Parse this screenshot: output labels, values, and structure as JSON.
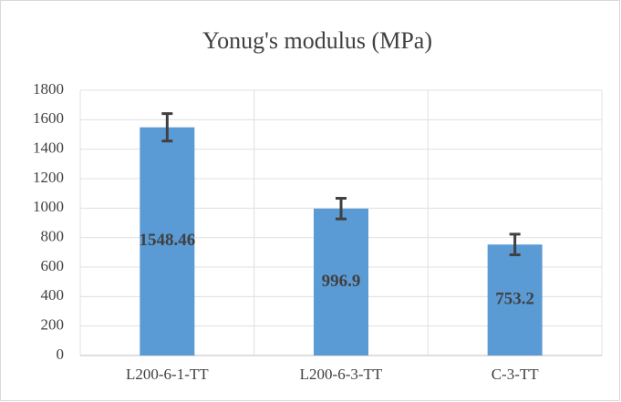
{
  "chart_data": {
    "type": "bar",
    "title": "Yonug's modulus (MPa)",
    "categories": [
      "L200-6-1-TT",
      "L200-6-3-TT",
      "C-3-TT"
    ],
    "values": [
      1548.46,
      996.9,
      753.2
    ],
    "errors": [
      93,
      70,
      70
    ],
    "color": "#5b9bd5",
    "error_color": "#404040",
    "ylim": [
      0,
      1800
    ],
    "yticks": [
      0,
      200,
      400,
      600,
      800,
      1000,
      1200,
      1400,
      1600,
      1800
    ],
    "grid": true,
    "data_labels": true
  }
}
